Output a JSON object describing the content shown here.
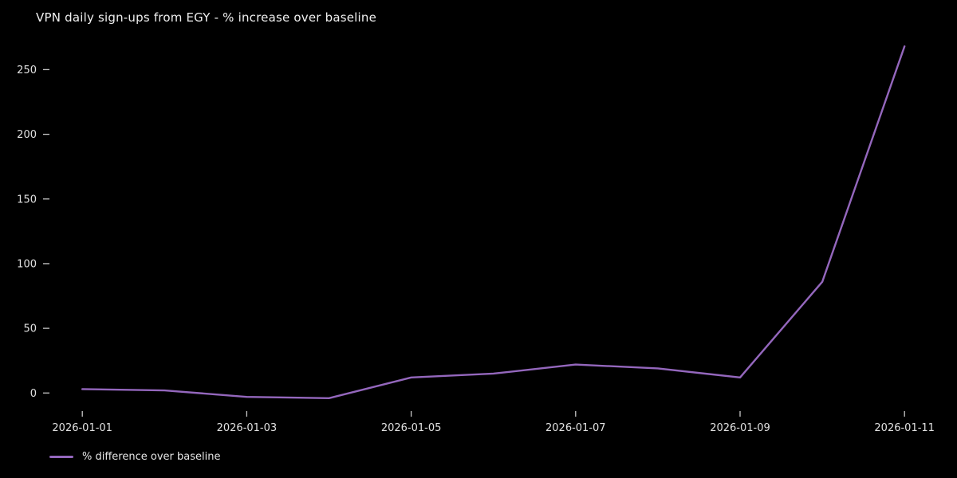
{
  "chart_data": {
    "type": "line",
    "title": "VPN daily sign-ups from EGY - % increase over baseline",
    "x": [
      "2026-01-01",
      "2026-01-02",
      "2026-01-03",
      "2026-01-04",
      "2026-01-05",
      "2026-01-06",
      "2026-01-07",
      "2026-01-08",
      "2026-01-09",
      "2026-01-10",
      "2026-01-11"
    ],
    "series": [
      {
        "name": "% difference over baseline",
        "values": [
          3,
          2,
          -3,
          -4,
          12,
          15,
          22,
          19,
          12,
          86,
          268
        ],
        "color": "#9467bd"
      }
    ],
    "x_tick_labels": [
      "2026-01-01",
      "2026-01-03",
      "2026-01-05",
      "2026-01-07",
      "2026-01-09",
      "2026-01-11"
    ],
    "y_ticks": [
      0,
      50,
      100,
      150,
      200,
      250
    ],
    "ylim": [
      -15,
      280
    ],
    "xlabel": "",
    "ylabel": "",
    "grid": false,
    "legend_position": "bottom-left",
    "colors": {
      "background": "#000000",
      "title_text": "#f0f0f0",
      "tick_text": "#e0e0e0",
      "tick_mark": "#c8c8c8",
      "line": "#9467bd"
    }
  }
}
